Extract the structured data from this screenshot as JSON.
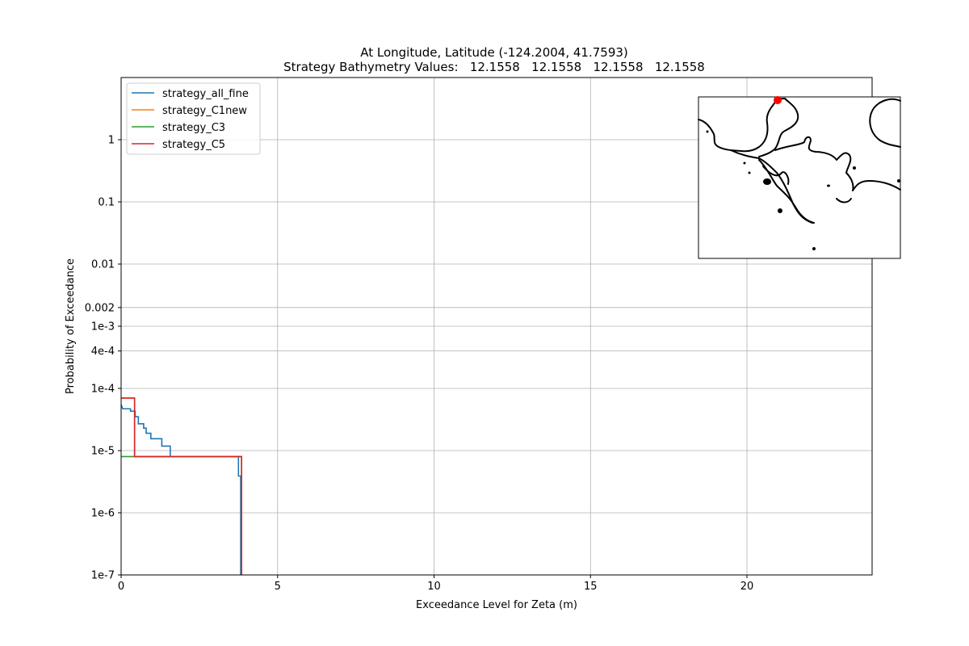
{
  "chart_data": {
    "type": "line",
    "title": "At Longitude, Latitude (-124.2004,  41.7593)",
    "subtitle": "Strategy Bathymetry Values:   12.1558   12.1558   12.1558   12.1558",
    "xlabel": "Exceedance Level for Zeta (m)",
    "ylabel": "Probability of Exceedance",
    "xlim": [
      0,
      24
    ],
    "ylim": [
      1e-07,
      10
    ],
    "yscale": "log",
    "grid": true,
    "legend_position": "upper-left",
    "x_ticks": [
      {
        "value": 0,
        "label": "0"
      },
      {
        "value": 5,
        "label": "5"
      },
      {
        "value": 10,
        "label": "10"
      },
      {
        "value": 15,
        "label": "15"
      },
      {
        "value": 20,
        "label": "20"
      }
    ],
    "y_ticks": [
      {
        "value": 1e-07,
        "label": "1e-7"
      },
      {
        "value": 1e-06,
        "label": "1e-6"
      },
      {
        "value": 1e-05,
        "label": "1e-5"
      },
      {
        "value": 0.0001,
        "label": "1e-4"
      },
      {
        "value": 0.0004,
        "label": "4e-4"
      },
      {
        "value": 0.001,
        "label": "1e-3"
      },
      {
        "value": 0.002,
        "label": "0.002"
      },
      {
        "value": 0.01,
        "label": "0.01"
      },
      {
        "value": 0.1,
        "label": "0.1"
      },
      {
        "value": 1,
        "label": "1"
      }
    ],
    "series": [
      {
        "name": "strategy_all_fine",
        "color": "#1f77b4",
        "points": [
          [
            0,
            5.5e-05
          ],
          [
            0.05,
            4.7e-05
          ],
          [
            0.3,
            4.7e-05
          ],
          [
            0.3,
            4.3e-05
          ],
          [
            0.45,
            4.3e-05
          ],
          [
            0.45,
            3.5e-05
          ],
          [
            0.55,
            3.5e-05
          ],
          [
            0.55,
            2.7e-05
          ],
          [
            0.72,
            2.7e-05
          ],
          [
            0.72,
            2.3e-05
          ],
          [
            0.8,
            2.3e-05
          ],
          [
            0.8,
            1.9e-05
          ],
          [
            0.95,
            1.9e-05
          ],
          [
            0.95,
            1.55e-05
          ],
          [
            1.3,
            1.55e-05
          ],
          [
            1.3,
            1.18e-05
          ],
          [
            1.57,
            1.18e-05
          ],
          [
            1.57,
            8e-06
          ],
          [
            3.75,
            8e-06
          ],
          [
            3.75,
            3.9e-06
          ],
          [
            3.82,
            3.9e-06
          ],
          [
            3.82,
            1e-07
          ]
        ]
      },
      {
        "name": "strategy_C1new",
        "color": "#ff7f0e",
        "points": [
          [
            0,
            7e-05
          ],
          [
            0.43,
            7e-05
          ],
          [
            0.43,
            8e-06
          ],
          [
            3.85,
            8e-06
          ],
          [
            3.85,
            1e-07
          ]
        ]
      },
      {
        "name": "strategy_C3",
        "color": "#2ca02c",
        "points": [
          [
            0,
            8e-06
          ],
          [
            3.85,
            8e-06
          ],
          [
            3.85,
            1e-07
          ]
        ]
      },
      {
        "name": "strategy_C5",
        "color": "#d62728",
        "points": [
          [
            0,
            7e-05
          ],
          [
            0.43,
            7e-05
          ],
          [
            0.43,
            8e-06
          ],
          [
            3.85,
            8e-06
          ],
          [
            3.85,
            1e-07
          ]
        ]
      }
    ]
  },
  "inset_map": {
    "marker_color": "#ff0000",
    "coastline_color": "#000000"
  }
}
